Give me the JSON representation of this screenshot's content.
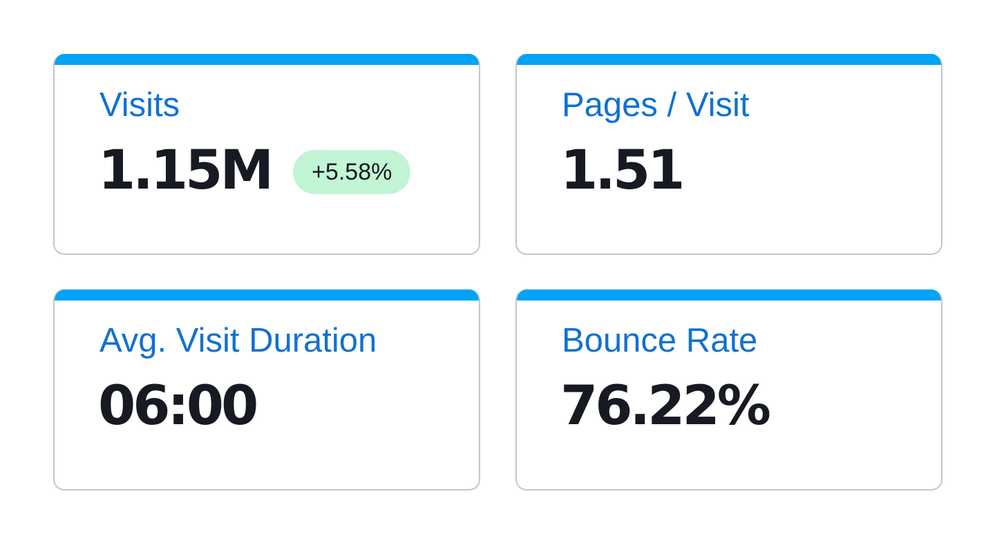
{
  "metrics": [
    {
      "label": "Visits",
      "value": "1.15M",
      "change": "+5.58%"
    },
    {
      "label": "Pages / Visit",
      "value": "1.51"
    },
    {
      "label": "Avg. Visit Duration",
      "value": "06:00"
    },
    {
      "label": "Bounce Rate",
      "value": "76.22%"
    }
  ],
  "colors": {
    "accent": "#00a3f5",
    "label": "#1171d1",
    "value": "#171a22",
    "badge_bg": "#c1f5d4",
    "border": "#c3c6cc"
  }
}
